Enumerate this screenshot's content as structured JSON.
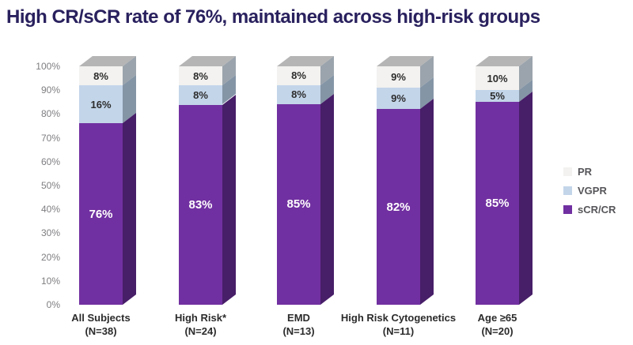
{
  "title": "High CR/sCR rate of 76%, maintained across high-risk groups",
  "title_color": "#29215e",
  "chart_data": {
    "type": "bar",
    "stacked": true,
    "style": "3d-column",
    "title": "High CR/sCR rate of 76%, maintained across high-risk groups",
    "grid": false,
    "legend_position": "right",
    "categories": [
      {
        "label": "All Subjects",
        "n_label": "(N=38)"
      },
      {
        "label": "High Risk*",
        "n_label": "(N=24)"
      },
      {
        "label": "EMD",
        "n_label": "(N=13)"
      },
      {
        "label": "High Risk Cytogenetics",
        "n_label": "(N=11)"
      },
      {
        "label": "Age ≥65",
        "n_label": "(N=20)"
      }
    ],
    "series": [
      {
        "name": "PR",
        "values": [
          8,
          8,
          8,
          9,
          10
        ],
        "front_color": "#f3f2f0",
        "side_color": "#9ba4ac",
        "label_color": "#2d2d2d"
      },
      {
        "name": "VGPR",
        "values": [
          16,
          8,
          8,
          9,
          5
        ],
        "front_color": "#c3d5e9",
        "side_color": "#8495a6",
        "label_color": "#2d2d2d"
      },
      {
        "name": "sCR/CR",
        "values": [
          76,
          83,
          85,
          82,
          85
        ],
        "front_color": "#7130a1",
        "side_color": "#471e68",
        "label_color": "#ffffff"
      }
    ],
    "value_suffix": "%",
    "top_face_color": "#b5b5b6",
    "y_axis": {
      "min": 0,
      "max": 100,
      "tick_labels": [
        "0%",
        "10%",
        "20%",
        "30%",
        "40%",
        "50%",
        "60%",
        "70%",
        "80%",
        "90%",
        "100%"
      ]
    }
  }
}
